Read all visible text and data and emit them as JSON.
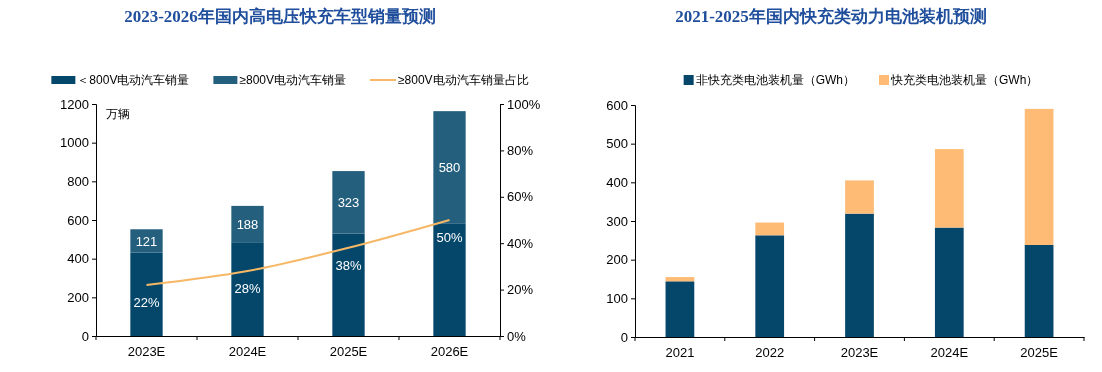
{
  "chart_data": [
    {
      "type": "bar",
      "title": "2023-2026年国内高电压快充车型销量预测",
      "ylabel": "万辆",
      "stacked": true,
      "legend": "top",
      "grid": false,
      "categories": [
        "2023E",
        "2024E",
        "2025E",
        "2026E"
      ],
      "series": [
        {
          "name": "＜800V电动汽车销量",
          "color": "#05476a",
          "values": [
            431,
            485,
            530,
            583
          ]
        },
        {
          "name": "≥800V电动汽车销量",
          "color": "#255f7e",
          "values": [
            121,
            188,
            323,
            580
          ],
          "value_labels": [
            "121",
            "188",
            "323",
            "580"
          ]
        },
        {
          "name": "≥800V电动汽车销量占比",
          "type": "line",
          "axis": "y2",
          "color": "#f6b866",
          "marker": "none",
          "values": [
            22,
            28,
            38,
            50
          ],
          "value_labels": [
            "22%",
            "28%",
            "38%",
            "50%"
          ]
        }
      ],
      "ylim": [
        0,
        1200
      ],
      "yticks": [
        0,
        200,
        400,
        600,
        800,
        1000,
        1200
      ],
      "y2lim": [
        0,
        100
      ],
      "y2ticks": [
        {
          "value": 0,
          "label": "0%"
        },
        {
          "value": 20,
          "label": "20%"
        },
        {
          "value": 40,
          "label": "40%"
        },
        {
          "value": 60,
          "label": "60%"
        },
        {
          "value": 80,
          "label": "80%"
        },
        {
          "value": 100,
          "label": "100%"
        }
      ]
    },
    {
      "type": "bar",
      "title": "2021-2025年国内快充类动力电池装机预测",
      "stacked": true,
      "legend": "top",
      "grid": false,
      "categories": [
        "2021",
        "2022",
        "2023E",
        "2024E",
        "2025E"
      ],
      "series": [
        {
          "name": "非快充类电池装机量（GWh）",
          "color": "#05476a",
          "values": [
            144,
            263,
            319,
            283,
            238
          ]
        },
        {
          "name": "快充类电池装机量（GWh）",
          "color": "#fdbb75",
          "values": [
            11,
            33,
            86,
            203,
            352
          ]
        }
      ],
      "ylim": [
        0,
        600
      ],
      "yticks": [
        0,
        100,
        200,
        300,
        400,
        500,
        600
      ]
    }
  ]
}
